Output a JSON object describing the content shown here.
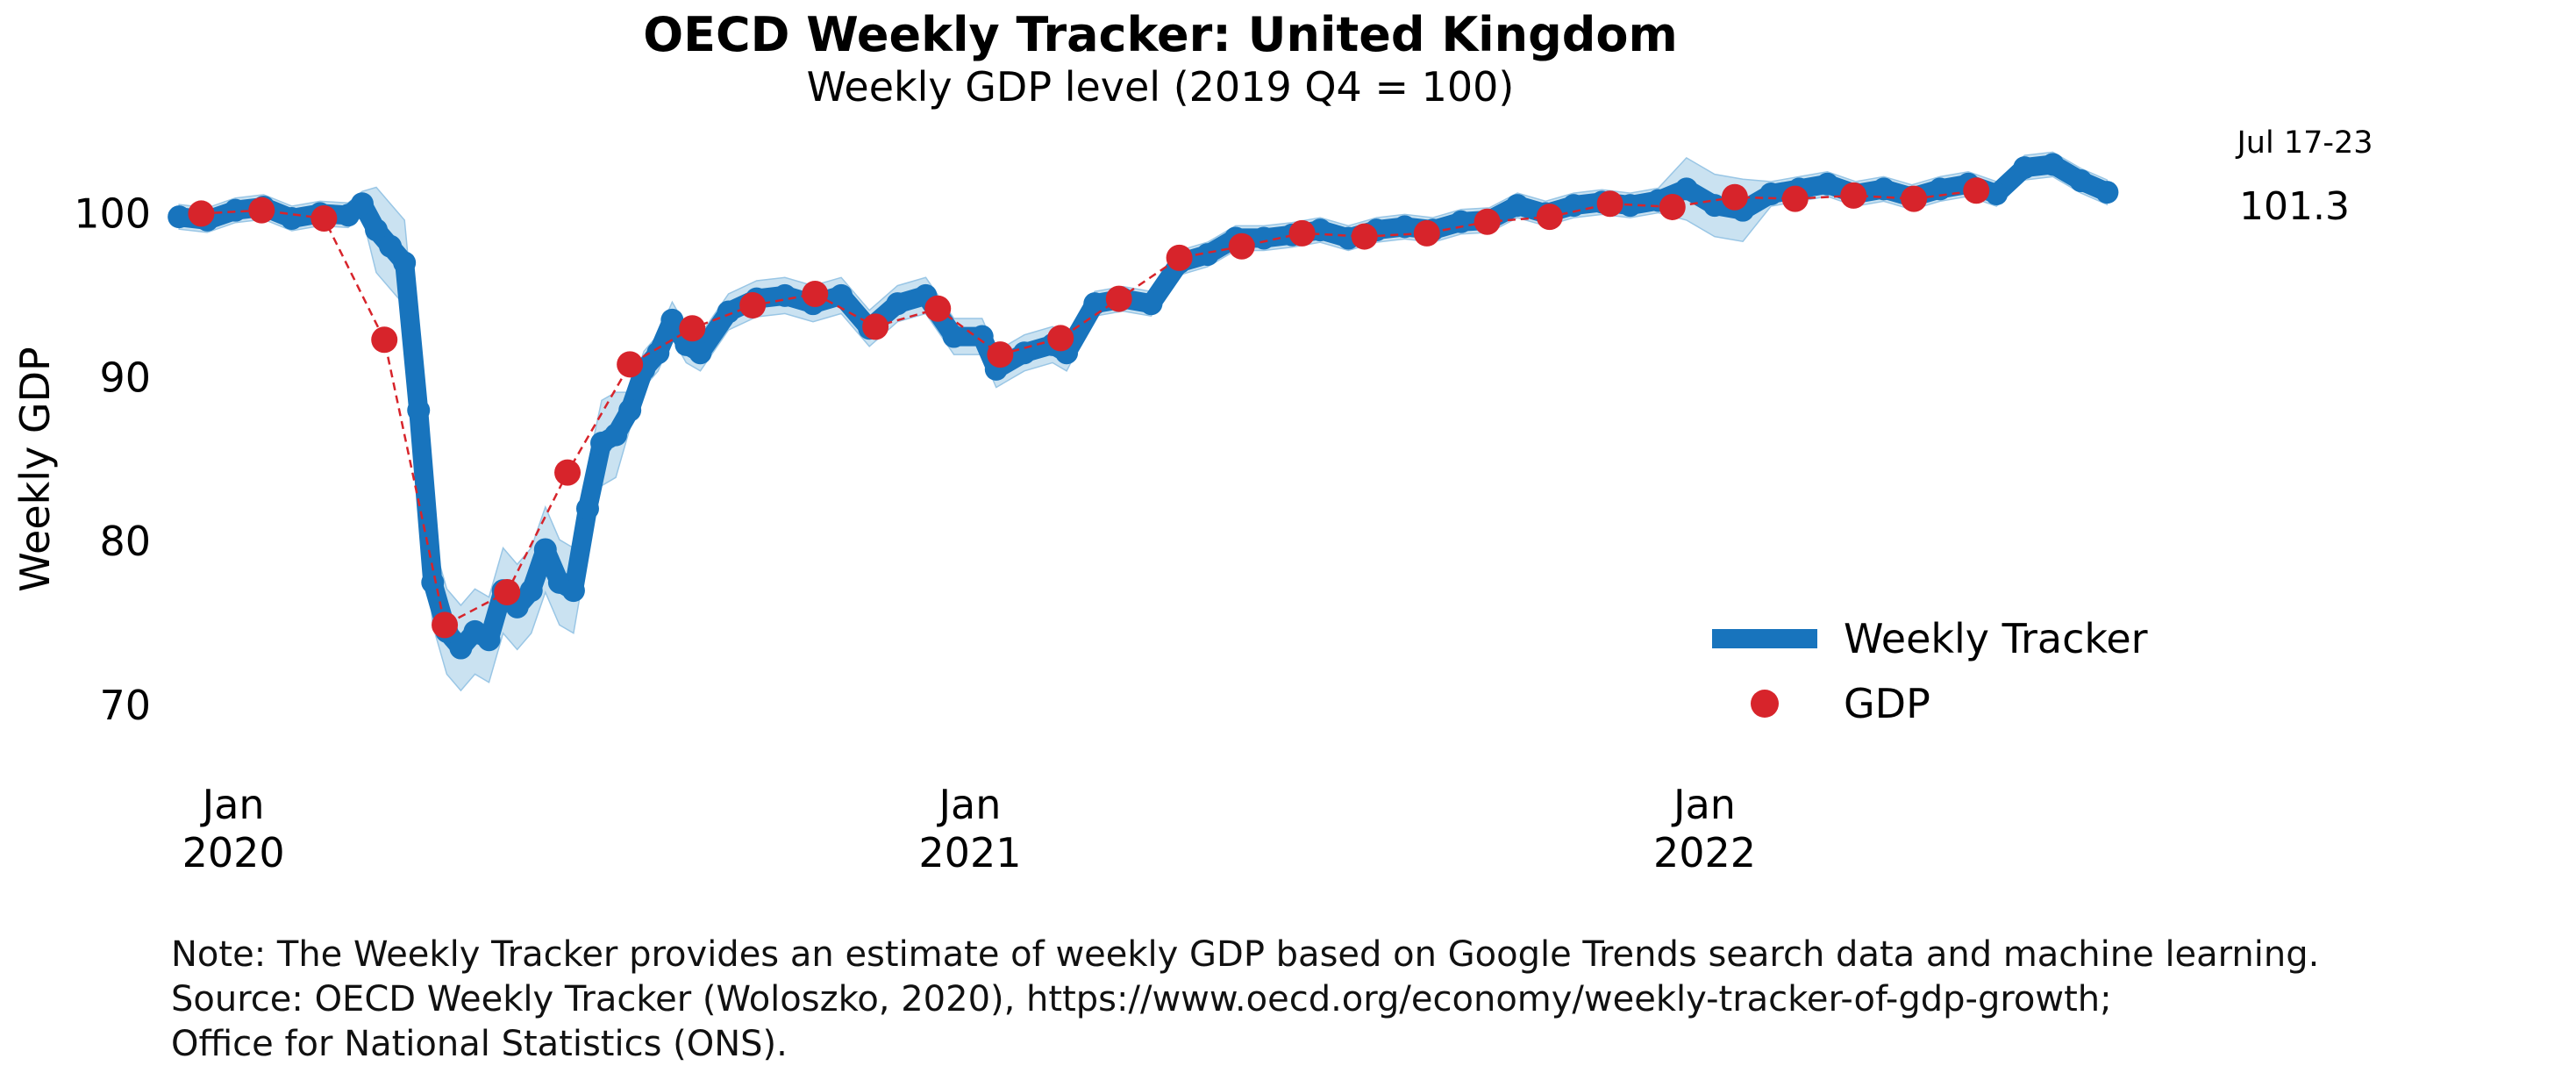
{
  "chart_data": {
    "type": "line",
    "title": "OECD Weekly Tracker: United Kingdom",
    "subtitle": "Weekly GDP level (2019 Q4 = 100)",
    "ylabel": "Weekly GDP",
    "xlabel": "",
    "ylim": [
      67,
      105
    ],
    "xlim": [
      "2019-12-01",
      "2022-08-25"
    ],
    "y_ticks": [
      70,
      80,
      90,
      100
    ],
    "x_ticks": [
      {
        "date": "2020-01-01",
        "label_line1": "Jan",
        "label_line2": "2020"
      },
      {
        "date": "2021-01-01",
        "label_line1": "Jan",
        "label_line2": "2021"
      },
      {
        "date": "2022-01-01",
        "label_line1": "Jan",
        "label_line2": "2022"
      }
    ],
    "grid": false,
    "legend": {
      "placement": "lower-right",
      "entries": [
        "Weekly Tracker",
        "GDP"
      ]
    },
    "last_point_date_label": "Jul 17-23",
    "last_point_value_label": "101.3",
    "colors": {
      "tracker": "#1874bd",
      "band": "#c5dff0",
      "gdp": "#d7242b"
    },
    "series": [
      {
        "name": "Weekly Tracker",
        "style": "thick line with markers and confidence band",
        "points": [
          [
            "2019-12-05",
            99.8
          ],
          [
            "2019-12-19",
            99.6
          ],
          [
            "2020-01-02",
            100.2
          ],
          [
            "2020-01-16",
            100.4
          ],
          [
            "2020-01-30",
            99.7
          ],
          [
            "2020-02-13",
            100.0
          ],
          [
            "2020-02-27",
            99.9
          ],
          [
            "2020-03-05",
            100.6
          ],
          [
            "2020-03-12",
            99.0
          ],
          [
            "2020-03-19",
            98.0
          ],
          [
            "2020-03-26",
            97.0
          ],
          [
            "2020-04-02",
            88.0
          ],
          [
            "2020-04-09",
            77.5
          ],
          [
            "2020-04-16",
            74.5
          ],
          [
            "2020-04-23",
            73.5
          ],
          [
            "2020-04-30",
            74.5
          ],
          [
            "2020-05-07",
            74.0
          ],
          [
            "2020-05-14",
            77.0
          ],
          [
            "2020-05-21",
            76.0
          ],
          [
            "2020-05-28",
            77.0
          ],
          [
            "2020-06-04",
            79.5
          ],
          [
            "2020-06-11",
            77.5
          ],
          [
            "2020-06-18",
            77.0
          ],
          [
            "2020-06-25",
            82.0
          ],
          [
            "2020-07-02",
            86.0
          ],
          [
            "2020-07-09",
            86.5
          ],
          [
            "2020-07-16",
            88.0
          ],
          [
            "2020-07-23",
            90.5
          ],
          [
            "2020-07-30",
            91.5
          ],
          [
            "2020-08-06",
            93.5
          ],
          [
            "2020-08-13",
            92.0
          ],
          [
            "2020-08-20",
            91.5
          ],
          [
            "2020-09-03",
            94.0
          ],
          [
            "2020-09-17",
            94.8
          ],
          [
            "2020-10-01",
            95.0
          ],
          [
            "2020-10-15",
            94.5
          ],
          [
            "2020-10-29",
            95.0
          ],
          [
            "2020-11-12",
            93.0
          ],
          [
            "2020-11-26",
            94.5
          ],
          [
            "2020-12-10",
            95.0
          ],
          [
            "2020-12-24",
            92.5
          ],
          [
            "2021-01-07",
            92.5
          ],
          [
            "2021-01-14",
            90.5
          ],
          [
            "2021-01-28",
            91.5
          ],
          [
            "2021-02-11",
            92.0
          ],
          [
            "2021-02-18",
            91.5
          ],
          [
            "2021-03-04",
            94.5
          ],
          [
            "2021-03-18",
            94.8
          ],
          [
            "2021-04-01",
            94.5
          ],
          [
            "2021-04-15",
            97.0
          ],
          [
            "2021-04-29",
            97.5
          ],
          [
            "2021-05-13",
            98.5
          ],
          [
            "2021-05-27",
            98.5
          ],
          [
            "2021-06-10",
            98.7
          ],
          [
            "2021-06-24",
            99.0
          ],
          [
            "2021-07-08",
            98.5
          ],
          [
            "2021-07-22",
            99.0
          ],
          [
            "2021-08-05",
            99.2
          ],
          [
            "2021-08-19",
            99.0
          ],
          [
            "2021-09-02",
            99.5
          ],
          [
            "2021-09-16",
            99.6
          ],
          [
            "2021-09-30",
            100.5
          ],
          [
            "2021-10-14",
            100.0
          ],
          [
            "2021-10-28",
            100.5
          ],
          [
            "2021-11-11",
            100.7
          ],
          [
            "2021-11-25",
            100.5
          ],
          [
            "2021-12-09",
            100.8
          ],
          [
            "2021-12-23",
            101.5
          ],
          [
            "2022-01-06",
            100.5
          ],
          [
            "2022-01-20",
            100.2
          ],
          [
            "2022-02-03",
            101.2
          ],
          [
            "2022-02-17",
            101.5
          ],
          [
            "2022-03-03",
            101.8
          ],
          [
            "2022-03-17",
            101.2
          ],
          [
            "2022-03-31",
            101.5
          ],
          [
            "2022-04-14",
            101.0
          ],
          [
            "2022-04-28",
            101.5
          ],
          [
            "2022-05-12",
            101.8
          ],
          [
            "2022-05-26",
            101.2
          ],
          [
            "2022-06-09",
            102.8
          ],
          [
            "2022-06-23",
            103.0
          ],
          [
            "2022-07-07",
            102.0
          ],
          [
            "2022-07-20",
            101.3
          ]
        ]
      },
      {
        "name": "GDP",
        "style": "red markers joined by dashed line",
        "points": [
          [
            "2019-12-16",
            100.0
          ],
          [
            "2020-01-15",
            100.2
          ],
          [
            "2020-02-15",
            99.7
          ],
          [
            "2020-03-16",
            92.3
          ],
          [
            "2020-04-15",
            74.9
          ],
          [
            "2020-05-16",
            76.9
          ],
          [
            "2020-06-15",
            84.2
          ],
          [
            "2020-07-16",
            90.8
          ],
          [
            "2020-08-16",
            93.0
          ],
          [
            "2020-09-15",
            94.4
          ],
          [
            "2020-10-16",
            95.1
          ],
          [
            "2020-11-15",
            93.1
          ],
          [
            "2020-12-16",
            94.2
          ],
          [
            "2021-01-16",
            91.4
          ],
          [
            "2021-02-15",
            92.4
          ],
          [
            "2021-03-16",
            94.8
          ],
          [
            "2021-04-15",
            97.3
          ],
          [
            "2021-05-16",
            98.0
          ],
          [
            "2021-06-15",
            98.8
          ],
          [
            "2021-07-16",
            98.6
          ],
          [
            "2021-08-16",
            98.8
          ],
          [
            "2021-09-15",
            99.5
          ],
          [
            "2021-10-16",
            99.8
          ],
          [
            "2021-11-15",
            100.6
          ],
          [
            "2021-12-16",
            100.4
          ],
          [
            "2022-01-16",
            101.0
          ],
          [
            "2022-02-15",
            100.9
          ],
          [
            "2022-03-16",
            101.1
          ],
          [
            "2022-04-15",
            100.9
          ],
          [
            "2022-05-16",
            101.4
          ]
        ]
      }
    ],
    "footnotes": [
      "Note: The Weekly Tracker provides an estimate of weekly GDP based on Google Trends search data and machine learning.",
      "Source: OECD Weekly Tracker (Woloszko, 2020), https://www.oecd.org/economy/weekly-tracker-of-gdp-growth;",
      "Office for National Statistics (ONS)."
    ]
  }
}
